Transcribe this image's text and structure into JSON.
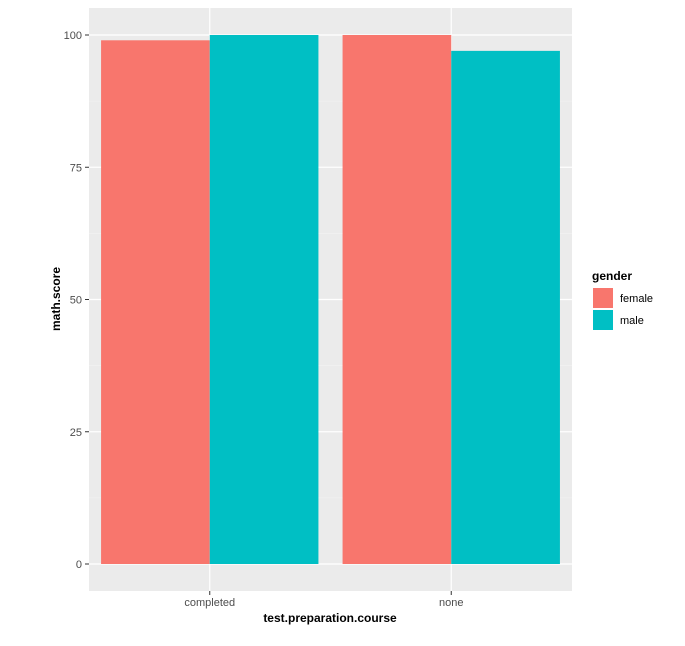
{
  "chart_data": {
    "type": "bar",
    "categories": [
      "completed",
      "none"
    ],
    "series": [
      {
        "name": "female",
        "values": [
          99,
          100
        ],
        "color": "#F8766D"
      },
      {
        "name": "male",
        "values": [
          100,
          97
        ],
        "color": "#00BFC4"
      }
    ],
    "xlabel": "test.preparation.course",
    "ylabel": "math.score",
    "ylim": [
      0,
      100
    ],
    "yticks": [
      0,
      25,
      50,
      75,
      100
    ],
    "grid": true,
    "panel_background": "#EBEBEB",
    "legend": {
      "title": "gender",
      "position": "right",
      "entries": [
        "female",
        "male"
      ]
    }
  }
}
